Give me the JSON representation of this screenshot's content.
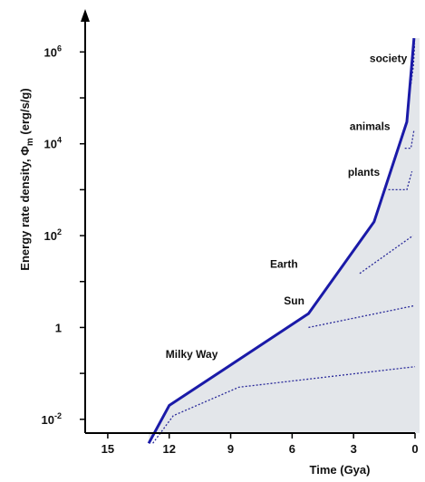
{
  "chart_data": {
    "type": "line",
    "xlabel": "Time (Gya)",
    "ylabel": "Energy rate density, Φ",
    "ylabel_sub": "m",
    "ylabel_units": " (erg/s/g)",
    "x_ticks": [
      15,
      12,
      9,
      6,
      3,
      0
    ],
    "x_tick_labels": [
      "15",
      "12",
      "9",
      "6",
      "3",
      "0"
    ],
    "y_scale": "log",
    "y_ticks": [
      {
        "value": 0.01,
        "base": "10",
        "exp": "-2"
      },
      {
        "value": 1,
        "base": "1",
        "exp": ""
      },
      {
        "value": 100,
        "base": "10",
        "exp": "2"
      },
      {
        "value": 10000,
        "base": "10",
        "exp": "4"
      },
      {
        "value": 1000000,
        "base": "10",
        "exp": "6"
      }
    ],
    "y_minor_ticks": [
      0.1,
      10,
      1000,
      100000
    ],
    "xlim": [
      16.5,
      0
    ],
    "ylim_log10": [
      -2.3,
      6.5
    ],
    "colors": {
      "main_line": "#1a1aa8",
      "branch_line": "#2a2a9a",
      "fill": "#e3e6ea",
      "axis": "#000000"
    },
    "series": [
      {
        "x": [
          13.0,
          12.0,
          5.2,
          2.0,
          0.4,
          0.05
        ],
        "y": [
          0.003,
          0.02,
          2.0,
          200,
          30000,
          2000000
        ]
      }
    ],
    "branches": [
      {
        "x": [
          12.8,
          11.8,
          8.6,
          0.0
        ],
        "y": [
          0.003,
          0.012,
          0.05,
          0.14
        ]
      },
      {
        "x": [
          5.2,
          0.0
        ],
        "y": [
          1.0,
          3.0
        ]
      },
      {
        "x": [
          2.7,
          0.1
        ],
        "y": [
          15,
          100
        ]
      },
      {
        "x": [
          1.3,
          0.4,
          0.15
        ],
        "y": [
          1000,
          1000,
          2500
        ]
      },
      {
        "x": [
          0.5,
          0.2,
          0.05
        ],
        "y": [
          8000,
          8000,
          20000
        ]
      },
      {
        "x": [
          0.2,
          0.08,
          0.02
        ],
        "y": [
          200000,
          500000,
          1500000
        ]
      }
    ],
    "annotations": [
      {
        "text": "Milky Way",
        "x": 10.9,
        "y": 0.22
      },
      {
        "text": "Sun",
        "x": 5.9,
        "y": 3.2
      },
      {
        "text": "Earth",
        "x": 6.4,
        "y": 20
      },
      {
        "text": "plants",
        "x": 2.5,
        "y": 2000
      },
      {
        "text": "animals",
        "x": 2.2,
        "y": 20000
      },
      {
        "text": "society",
        "x": 1.3,
        "y": 600000
      }
    ]
  }
}
